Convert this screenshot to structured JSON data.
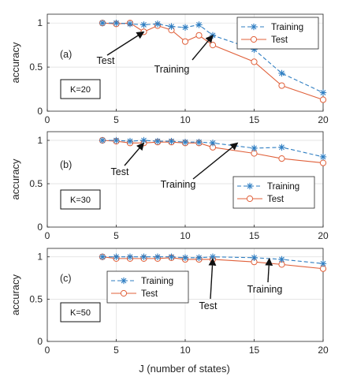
{
  "figure": {
    "xlabel": "J (number of states)"
  },
  "colors": {
    "training": "#2f7ec2",
    "test": "#e0603a",
    "axis": "#262626",
    "grid": "#dedede"
  },
  "chart_data": [
    {
      "type": "line",
      "panel_label": "(a)",
      "k_label": "K=20",
      "ylabel": "accuracy",
      "xlabel": "",
      "xlim": [
        0,
        20
      ],
      "ylim": [
        0,
        1.1
      ],
      "xticks": [
        0,
        5,
        10,
        15,
        20
      ],
      "yticks": [
        0,
        0.5,
        1
      ],
      "grid": true,
      "legend": "top-right",
      "series": [
        {
          "name": "Training",
          "marker": "asterisk",
          "line": "dashed",
          "x": [
            4,
            5,
            6,
            7,
            8,
            9,
            10,
            11,
            12,
            15,
            17,
            20
          ],
          "y": [
            1.0,
            1.0,
            0.99,
            0.98,
            0.99,
            0.96,
            0.95,
            0.98,
            0.86,
            0.7,
            0.43,
            0.21
          ]
        },
        {
          "name": "Test",
          "marker": "circle",
          "line": "solid",
          "x": [
            4,
            5,
            6,
            7,
            8,
            9,
            10,
            11,
            12,
            15,
            17,
            20
          ],
          "y": [
            1.0,
            0.99,
            1.0,
            0.9,
            0.97,
            0.92,
            0.79,
            0.86,
            0.75,
            0.56,
            0.29,
            0.13
          ]
        }
      ],
      "annotations": [
        {
          "text": "Test",
          "target": [
            7,
            0.9
          ]
        },
        {
          "text": "Training",
          "target": [
            12,
            0.86
          ]
        }
      ]
    },
    {
      "type": "line",
      "panel_label": "(b)",
      "k_label": "K=30",
      "ylabel": "accuracy",
      "xlabel": "",
      "xlim": [
        0,
        20
      ],
      "ylim": [
        0,
        1.1
      ],
      "xticks": [
        0,
        5,
        10,
        15,
        20
      ],
      "yticks": [
        0,
        0.5,
        1
      ],
      "grid": true,
      "legend": "lower-right",
      "series": [
        {
          "name": "Training",
          "marker": "asterisk",
          "line": "dashed",
          "x": [
            4,
            5,
            6,
            7,
            8,
            9,
            10,
            11,
            12,
            15,
            17,
            20
          ],
          "y": [
            1.0,
            1.0,
            0.99,
            1.0,
            0.99,
            0.99,
            0.98,
            0.98,
            0.97,
            0.91,
            0.92,
            0.81
          ]
        },
        {
          "name": "Test",
          "marker": "circle",
          "line": "solid",
          "x": [
            4,
            5,
            6,
            7,
            8,
            9,
            10,
            11,
            12,
            15,
            17,
            20
          ],
          "y": [
            1.0,
            0.99,
            0.97,
            0.97,
            0.98,
            0.98,
            0.97,
            0.97,
            0.92,
            0.85,
            0.79,
            0.74
          ]
        }
      ],
      "annotations": [
        {
          "text": "Test",
          "target": [
            7,
            0.97
          ]
        },
        {
          "text": "Training",
          "target": [
            13.8,
            0.97
          ]
        }
      ]
    },
    {
      "type": "line",
      "panel_label": "(c)",
      "k_label": "K=50",
      "ylabel": "accuracy",
      "xlabel": "J (number of states)",
      "xlim": [
        0,
        20
      ],
      "ylim": [
        0,
        1.1
      ],
      "xticks": [
        0,
        5,
        10,
        15,
        20
      ],
      "yticks": [
        0,
        0.5,
        1
      ],
      "grid": true,
      "legend": "upper-left",
      "series": [
        {
          "name": "Training",
          "marker": "asterisk",
          "line": "dashed",
          "x": [
            4,
            5,
            6,
            7,
            8,
            9,
            10,
            11,
            12,
            15,
            17,
            20
          ],
          "y": [
            1.0,
            1.0,
            1.0,
            1.0,
            1.0,
            1.0,
            0.99,
            0.99,
            1.0,
            0.99,
            0.97,
            0.92
          ]
        },
        {
          "name": "Test",
          "marker": "circle",
          "line": "solid",
          "x": [
            4,
            5,
            6,
            7,
            8,
            9,
            10,
            11,
            12,
            15,
            17,
            20
          ],
          "y": [
            1.0,
            0.98,
            0.98,
            0.98,
            0.98,
            0.99,
            0.97,
            0.97,
            0.97,
            0.94,
            0.91,
            0.86
          ]
        }
      ],
      "annotations": [
        {
          "text": "Test",
          "target": [
            12,
            0.98
          ]
        },
        {
          "text": "Training",
          "target": [
            16.1,
            0.98
          ]
        }
      ]
    }
  ]
}
